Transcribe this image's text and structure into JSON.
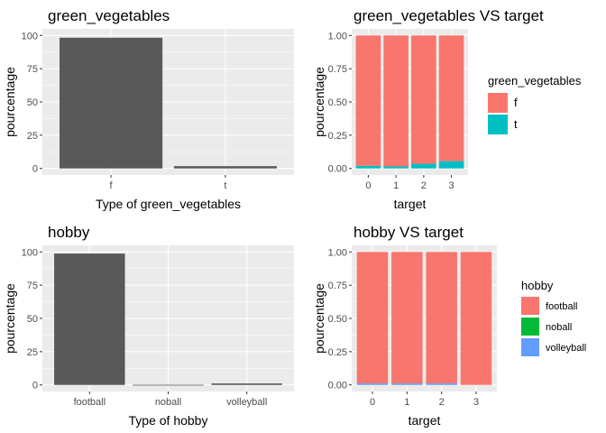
{
  "chart_data": [
    {
      "type": "bar",
      "title": "green_vegetables",
      "xlabel": "Type of green_vegetables",
      "ylabel": "pourcentage",
      "categories": [
        "f",
        "t"
      ],
      "values": [
        98.3,
        1.7
      ],
      "ylim": [
        0,
        100
      ],
      "yticks": [
        "0",
        "25",
        "50",
        "75",
        "100"
      ],
      "bar_color": "#595959",
      "grid": true
    },
    {
      "type": "bar",
      "stacked": true,
      "title": "green_vegetables VS target",
      "xlabel": "target",
      "ylabel": "pourcentage",
      "categories": [
        "0",
        "1",
        "2",
        "3"
      ],
      "series": [
        {
          "name": "t",
          "values": [
            0.02,
            0.015,
            0.035,
            0.055
          ],
          "color": "#00BFC4"
        },
        {
          "name": "f",
          "values": [
            0.98,
            0.985,
            0.965,
            0.945
          ],
          "color": "#F8766D"
        }
      ],
      "ylim": [
        0,
        1
      ],
      "yticks": [
        "0.00",
        "0.25",
        "0.50",
        "0.75",
        "1.00"
      ],
      "legend_title": "green_vegetables",
      "legend_items": [
        {
          "label": "f",
          "color": "#F8766D"
        },
        {
          "label": "t",
          "color": "#00BFC4"
        }
      ],
      "legend_position": "right",
      "grid": true
    },
    {
      "type": "bar",
      "title": "hobby",
      "xlabel": "Type of hobby",
      "ylabel": "pourcentage",
      "categories": [
        "football",
        "noball",
        "volleyball"
      ],
      "values": [
        98.8,
        0.1,
        1.1
      ],
      "ylim": [
        0,
        100
      ],
      "yticks": [
        "0",
        "25",
        "50",
        "75",
        "100"
      ],
      "bar_color": "#595959",
      "grid": true
    },
    {
      "type": "bar",
      "stacked": true,
      "title": "hobby VS target",
      "xlabel": "target",
      "ylabel": "pourcentage",
      "categories": [
        "0",
        "1",
        "2",
        "3"
      ],
      "series": [
        {
          "name": "volleyball",
          "values": [
            0.012,
            0.012,
            0.012,
            0.0
          ],
          "color": "#619CFF"
        },
        {
          "name": "noball",
          "values": [
            0.0,
            0.0,
            0.0,
            0.0
          ],
          "color": "#00BA38"
        },
        {
          "name": "football",
          "values": [
            0.988,
            0.988,
            0.988,
            1.0
          ],
          "color": "#F8766D"
        }
      ],
      "ylim": [
        0,
        1
      ],
      "yticks": [
        "0.00",
        "0.25",
        "0.50",
        "0.75",
        "1.00"
      ],
      "legend_title": "hobby",
      "legend_items": [
        {
          "label": "football",
          "color": "#F8766D"
        },
        {
          "label": "noball",
          "color": "#00BA38"
        },
        {
          "label": "volleyball",
          "color": "#619CFF"
        }
      ],
      "legend_position": "right",
      "grid": true
    }
  ],
  "colors": {
    "panel_background": "#EBEBEB",
    "grid_major": "#FFFFFF",
    "axis_text": "#4D4D4D"
  }
}
